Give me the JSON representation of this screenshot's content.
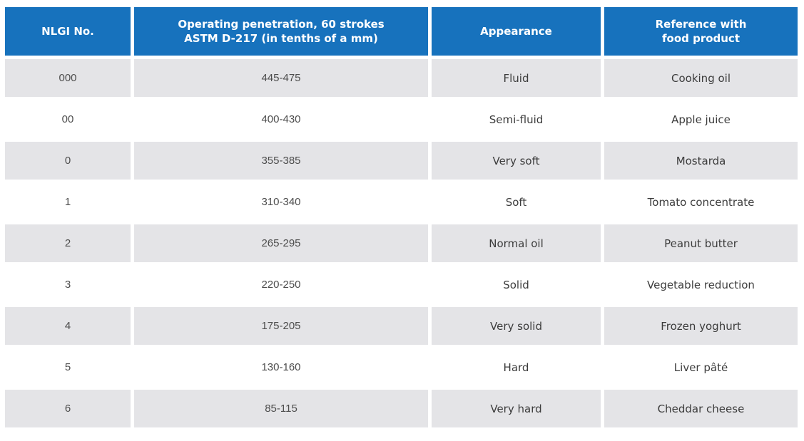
{
  "chart_data": {
    "type": "table",
    "columns": [
      {
        "id": "nlgi-no",
        "label": "NLGI No."
      },
      {
        "id": "operating-penetration",
        "label": "Operating penetration, 60 strokes\nASTM D-217 (in tenths of a mm)"
      },
      {
        "id": "appearance",
        "label": "Appearance"
      },
      {
        "id": "food-reference",
        "label": "Reference with\nfood product"
      }
    ],
    "rows": [
      [
        "000",
        "445-475",
        "Fluid",
        "Cooking oil"
      ],
      [
        "00",
        "400-430",
        "Semi-fluid",
        "Apple juice"
      ],
      [
        "0",
        "355-385",
        "Very soft",
        "Mostarda"
      ],
      [
        "1",
        "310-340",
        "Soft",
        "Tomato concentrate"
      ],
      [
        "2",
        "265-295",
        "Normal oil",
        "Peanut butter"
      ],
      [
        "3",
        "220-250",
        "Solid",
        "Vegetable reduction"
      ],
      [
        "4",
        "175-205",
        "Very solid",
        "Frozen yoghurt"
      ],
      [
        "5",
        "130-160",
        "Hard",
        "Liver pâté"
      ],
      [
        "6",
        "85-115",
        "Very hard",
        "Cheddar cheese"
      ]
    ]
  },
  "colors": {
    "header_bg": "#1772BD",
    "header_text": "#FFFFFF",
    "row_alt_bg": "#E4E4E7",
    "row_bg": "#FFFFFF",
    "cell_text": "#3C3C3C"
  }
}
